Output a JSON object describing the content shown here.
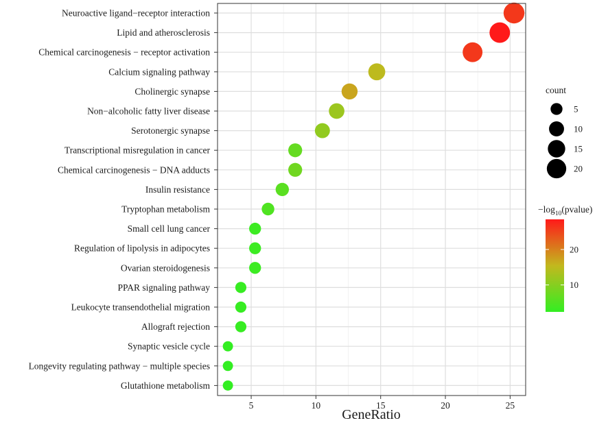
{
  "chart_data": {
    "type": "scatter",
    "xlabel": "GeneRatio",
    "ylabel": "",
    "xlim": [
      2.4,
      26.2
    ],
    "xticks": [
      5,
      10,
      15,
      20,
      25
    ],
    "grid": true,
    "categories": [
      "Neuroactive ligand−receptor interaction",
      "Lipid and atherosclerosis",
      "Chemical carcinogenesis − receptor activation",
      "Calcium signaling pathway",
      "Cholinergic synapse",
      "Non−alcoholic fatty liver disease",
      "Serotonergic synapse",
      "Transcriptional misregulation in cancer",
      "Chemical carcinogenesis − DNA adducts",
      "Insulin resistance",
      "Tryptophan metabolism",
      "Small cell lung cancer",
      "Regulation of lipolysis in adipocytes",
      "Ovarian steroidogenesis",
      "PPAR signaling pathway",
      "Leukocyte transendothelial migration",
      "Allograft rejection",
      "Synaptic vesicle cycle",
      "Longevity regulating pathway − multiple species",
      "Glutathione metabolism"
    ],
    "gene_ratio": [
      25.3,
      24.2,
      22.1,
      14.7,
      12.6,
      11.6,
      10.5,
      8.4,
      8.4,
      7.4,
      6.3,
      5.3,
      5.3,
      5.3,
      4.2,
      4.2,
      4.2,
      3.2,
      3.2,
      3.2
    ],
    "count": [
      24,
      23,
      21,
      14,
      12,
      11,
      10,
      8,
      8,
      7,
      6,
      5,
      5,
      5,
      4,
      4,
      4,
      3,
      3,
      3
    ],
    "neg_log10_pvalue": [
      26,
      28.5,
      26,
      15,
      17,
      12,
      11,
      7,
      8,
      6,
      5,
      3.2,
      3.2,
      3.2,
      2.8,
      2.8,
      2.8,
      2.4,
      2.4,
      2.4
    ],
    "size_legend": {
      "title": "count",
      "values": [
        5,
        10,
        15,
        20
      ]
    },
    "color_legend": {
      "title_prefix": "−log",
      "title_sub": "10",
      "title_suffix": "(pvalue)",
      "range": [
        2.4,
        28.5
      ],
      "ticks": [
        10,
        20
      ],
      "low_color": "#33ee22",
      "mid_color": "#c2b81e",
      "high_color": "#ff1a1a"
    }
  }
}
